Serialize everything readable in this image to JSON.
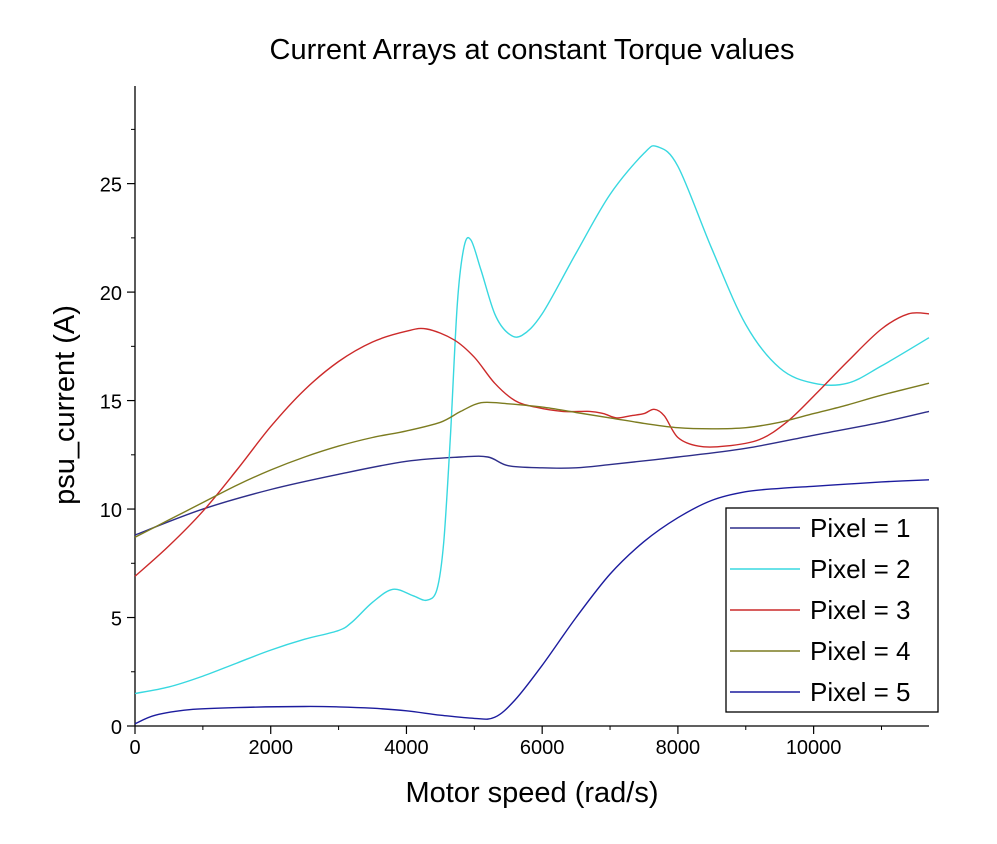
{
  "chart_data": {
    "type": "line",
    "title": "Current Arrays at constant Torque values",
    "xlabel": "Motor speed (rad/s)",
    "ylabel": "psu_current (A)",
    "xlim": [
      0,
      11700
    ],
    "ylim": [
      0,
      29.5
    ],
    "xticks": [
      0,
      2000,
      4000,
      6000,
      8000,
      10000
    ],
    "xtick_labels": [
      "0",
      "2000",
      "4000",
      "6000",
      "8000",
      "10000"
    ],
    "yticks": [
      0,
      5,
      10,
      15,
      20,
      25
    ],
    "ytick_labels": [
      "0",
      "5",
      "10",
      "15",
      "20",
      "25"
    ],
    "grid": false,
    "legend_position": "bottom-right",
    "series": [
      {
        "name": "Pixel = 1",
        "color": "#2e2e8a",
        "points": [
          [
            0,
            8.8
          ],
          [
            1000,
            10.0
          ],
          [
            2000,
            10.9
          ],
          [
            3000,
            11.6
          ],
          [
            4000,
            12.2
          ],
          [
            4800,
            12.4
          ],
          [
            5200,
            12.4
          ],
          [
            5500,
            12.0
          ],
          [
            6000,
            11.9
          ],
          [
            6500,
            11.9
          ],
          [
            7000,
            12.05
          ],
          [
            8000,
            12.4
          ],
          [
            9000,
            12.8
          ],
          [
            10000,
            13.4
          ],
          [
            11000,
            14.0
          ],
          [
            11700,
            14.5
          ]
        ]
      },
      {
        "name": "Pixel = 2",
        "color": "#38d8e0",
        "points": [
          [
            0,
            1.5
          ],
          [
            500,
            1.8
          ],
          [
            1000,
            2.3
          ],
          [
            1500,
            2.9
          ],
          [
            2000,
            3.5
          ],
          [
            2500,
            4.0
          ],
          [
            3000,
            4.4
          ],
          [
            3200,
            4.8
          ],
          [
            3500,
            5.7
          ],
          [
            3800,
            6.3
          ],
          [
            4100,
            6.0
          ],
          [
            4300,
            5.8
          ],
          [
            4450,
            6.3
          ],
          [
            4550,
            8.5
          ],
          [
            4650,
            13.5
          ],
          [
            4750,
            19.5
          ],
          [
            4850,
            22.1
          ],
          [
            4950,
            22.4
          ],
          [
            5100,
            21.0
          ],
          [
            5300,
            19.0
          ],
          [
            5500,
            18.1
          ],
          [
            5700,
            18.0
          ],
          [
            6000,
            19.0
          ],
          [
            6500,
            21.8
          ],
          [
            7000,
            24.5
          ],
          [
            7500,
            26.4
          ],
          [
            7700,
            26.7
          ],
          [
            8000,
            25.8
          ],
          [
            8500,
            22.0
          ],
          [
            9000,
            18.5
          ],
          [
            9500,
            16.5
          ],
          [
            10000,
            15.8
          ],
          [
            10500,
            15.8
          ],
          [
            11000,
            16.6
          ],
          [
            11700,
            17.9
          ]
        ]
      },
      {
        "name": "Pixel = 3",
        "color": "#cc2a2a",
        "points": [
          [
            0,
            6.9
          ],
          [
            500,
            8.3
          ],
          [
            1000,
            9.9
          ],
          [
            1500,
            11.8
          ],
          [
            2000,
            13.8
          ],
          [
            2500,
            15.5
          ],
          [
            3000,
            16.8
          ],
          [
            3500,
            17.7
          ],
          [
            4000,
            18.2
          ],
          [
            4300,
            18.3
          ],
          [
            4700,
            17.8
          ],
          [
            5000,
            17.0
          ],
          [
            5300,
            15.8
          ],
          [
            5600,
            15.0
          ],
          [
            5900,
            14.7
          ],
          [
            6300,
            14.5
          ],
          [
            6700,
            14.5
          ],
          [
            6900,
            14.4
          ],
          [
            7100,
            14.2
          ],
          [
            7300,
            14.3
          ],
          [
            7500,
            14.4
          ],
          [
            7650,
            14.6
          ],
          [
            7800,
            14.3
          ],
          [
            8000,
            13.3
          ],
          [
            8300,
            12.9
          ],
          [
            8700,
            12.9
          ],
          [
            9200,
            13.2
          ],
          [
            9600,
            14.0
          ],
          [
            10000,
            15.2
          ],
          [
            10500,
            16.8
          ],
          [
            11000,
            18.3
          ],
          [
            11400,
            19.0
          ],
          [
            11700,
            19.0
          ]
        ]
      },
      {
        "name": "Pixel = 4",
        "color": "#7c7c20",
        "points": [
          [
            0,
            8.7
          ],
          [
            500,
            9.5
          ],
          [
            1000,
            10.3
          ],
          [
            1500,
            11.1
          ],
          [
            2000,
            11.8
          ],
          [
            2500,
            12.4
          ],
          [
            3000,
            12.9
          ],
          [
            3500,
            13.3
          ],
          [
            4000,
            13.6
          ],
          [
            4500,
            14.0
          ],
          [
            4800,
            14.5
          ],
          [
            5100,
            14.9
          ],
          [
            5500,
            14.85
          ],
          [
            6000,
            14.7
          ],
          [
            6500,
            14.45
          ],
          [
            7000,
            14.2
          ],
          [
            7500,
            13.95
          ],
          [
            8000,
            13.75
          ],
          [
            8500,
            13.7
          ],
          [
            9000,
            13.75
          ],
          [
            9500,
            14.0
          ],
          [
            10000,
            14.4
          ],
          [
            10500,
            14.8
          ],
          [
            11000,
            15.25
          ],
          [
            11700,
            15.8
          ]
        ]
      },
      {
        "name": "Pixel = 5",
        "color": "#1c1c9e",
        "points": [
          [
            0,
            0.1
          ],
          [
            300,
            0.5
          ],
          [
            800,
            0.75
          ],
          [
            1500,
            0.85
          ],
          [
            2500,
            0.9
          ],
          [
            3000,
            0.88
          ],
          [
            3500,
            0.82
          ],
          [
            4000,
            0.7
          ],
          [
            4500,
            0.5
          ],
          [
            5000,
            0.35
          ],
          [
            5300,
            0.4
          ],
          [
            5600,
            1.2
          ],
          [
            6000,
            2.8
          ],
          [
            6500,
            5.0
          ],
          [
            7000,
            7.0
          ],
          [
            7500,
            8.5
          ],
          [
            8000,
            9.6
          ],
          [
            8500,
            10.4
          ],
          [
            9000,
            10.8
          ],
          [
            9500,
            10.95
          ],
          [
            10000,
            11.05
          ],
          [
            10500,
            11.15
          ],
          [
            11000,
            11.25
          ],
          [
            11700,
            11.35
          ]
        ]
      }
    ]
  }
}
